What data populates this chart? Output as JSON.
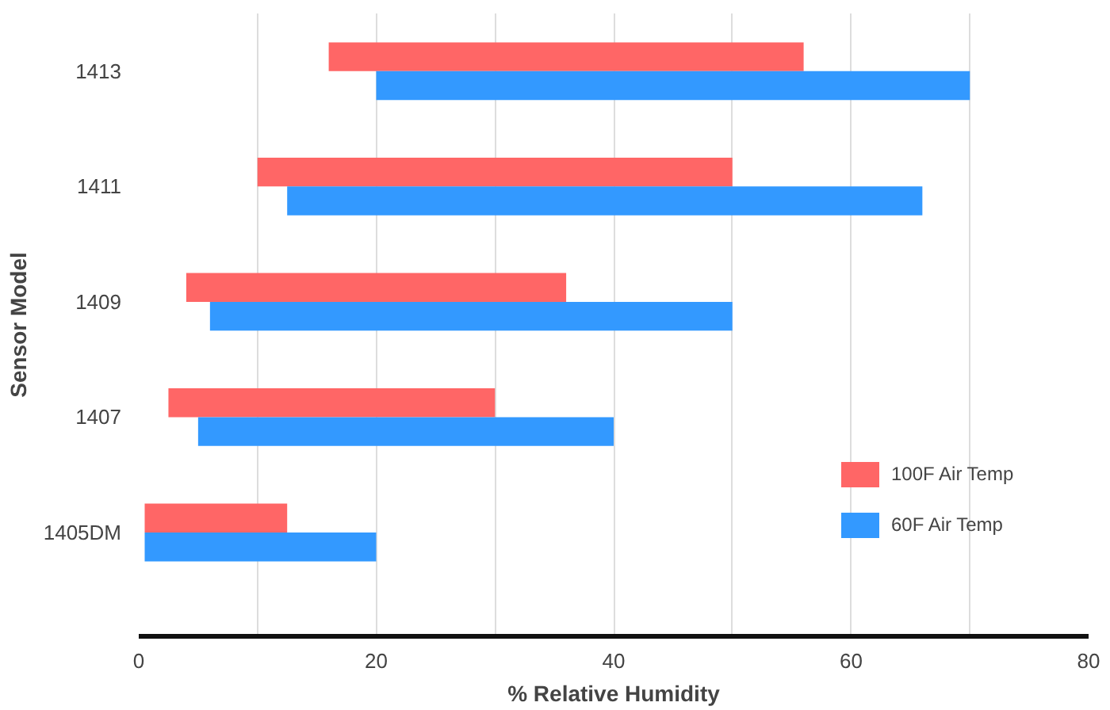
{
  "chart_data": {
    "type": "bar",
    "orientation": "horizontal",
    "xlabel": "% Relative Humidity",
    "ylabel": "Sensor Model",
    "categories": [
      "1413",
      "1411",
      "1409",
      "1407",
      "1405DM"
    ],
    "series": [
      {
        "name": "100F Air Temp",
        "color": "#ff6666",
        "base": [
          16,
          10,
          4,
          2.5,
          0.5
        ],
        "values": [
          40,
          40,
          32,
          27.5,
          12
        ]
      },
      {
        "name": "60F Air Temp",
        "color": "#3399ff",
        "base": [
          20,
          12.5,
          6,
          5,
          0.5
        ],
        "values": [
          50,
          53.5,
          44,
          35,
          19.5
        ]
      }
    ],
    "xlim": [
      0,
      80
    ],
    "xticks": [
      0,
      {
        "value": 10,
        "label": null
      },
      20,
      {
        "value": 30,
        "label": null
      },
      40,
      {
        "value": 50,
        "label": null
      },
      60,
      {
        "value": 70,
        "label": null
      },
      80
    ],
    "grid": "x",
    "legend": "right"
  }
}
